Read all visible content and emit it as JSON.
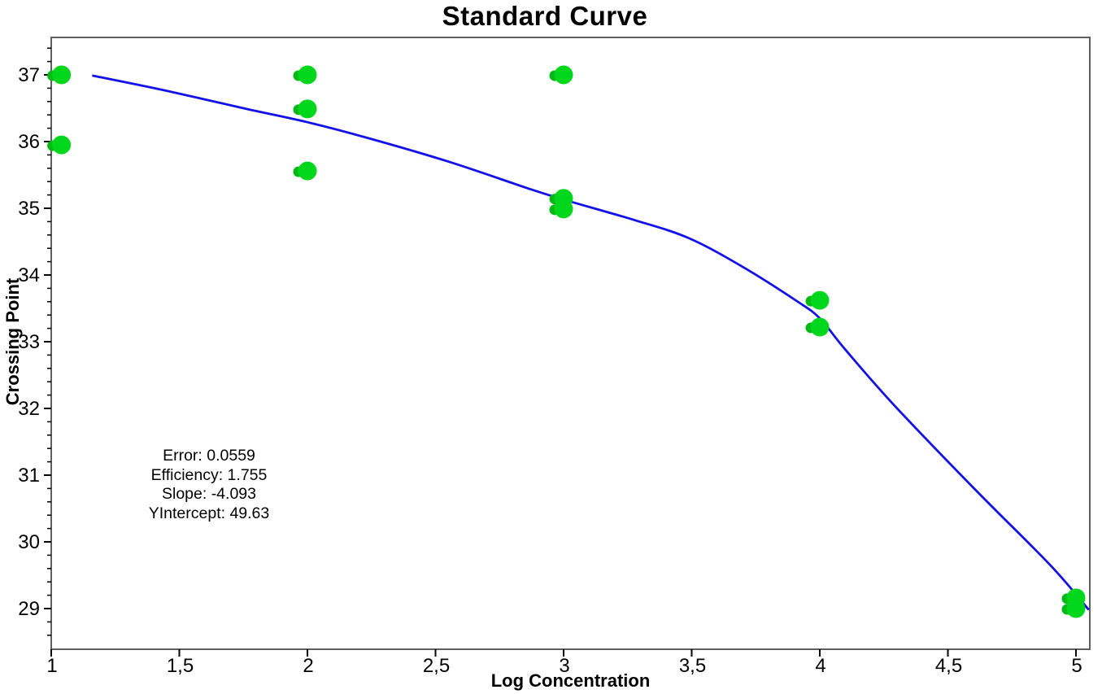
{
  "chart_data": {
    "type": "scatter",
    "title": "Standard Curve",
    "xlabel": "Log Concentration",
    "ylabel": "Crossing Point",
    "xlim": [
      1,
      5.05
    ],
    "ylim": [
      28.4,
      37.55
    ],
    "grid": false,
    "legend": "none",
    "x_ticks": {
      "values": [
        1,
        1.5,
        2,
        2.5,
        3,
        3.5,
        4,
        4.5,
        5
      ],
      "labels": [
        "1",
        "1,5",
        "2",
        "2,5",
        "3",
        "3,5",
        "4",
        "4,5",
        "5"
      ]
    },
    "y_ticks": {
      "values": [
        29,
        30,
        31,
        32,
        33,
        34,
        35,
        36,
        37
      ],
      "labels": [
        "29",
        "30",
        "31",
        "32",
        "33",
        "34",
        "35",
        "36",
        "37"
      ]
    },
    "y_minor_tick_step": 0.2,
    "series": [
      {
        "name": "standards",
        "marker": "circle",
        "color": "#00d61c",
        "points": [
          [
            1.04,
            37.0
          ],
          [
            1.04,
            35.95
          ],
          [
            2.0,
            37.0
          ],
          [
            2.0,
            36.49
          ],
          [
            2.0,
            35.56
          ],
          [
            3.0,
            37.0
          ],
          [
            3.0,
            35.15
          ],
          [
            3.0,
            34.99
          ],
          [
            4.0,
            33.62
          ],
          [
            4.0,
            33.22
          ],
          [
            5.0,
            29.16
          ],
          [
            5.0,
            29.0
          ]
        ]
      }
    ],
    "fit_curve": {
      "name": "standard-curve-fit",
      "color": "#1212e8",
      "points": [
        [
          1.16,
          36.99
        ],
        [
          1.44,
          36.77
        ],
        [
          1.75,
          36.5
        ],
        [
          2.0,
          36.29
        ],
        [
          2.23,
          36.06
        ],
        [
          2.55,
          35.7
        ],
        [
          2.86,
          35.3
        ],
        [
          3.0,
          35.13
        ],
        [
          3.28,
          34.82
        ],
        [
          3.49,
          34.55
        ],
        [
          3.7,
          34.12
        ],
        [
          3.91,
          33.61
        ],
        [
          4.0,
          33.35
        ],
        [
          4.1,
          32.88
        ],
        [
          4.29,
          32.05
        ],
        [
          4.61,
          30.77
        ],
        [
          4.9,
          29.65
        ],
        [
          5.05,
          28.98
        ]
      ]
    },
    "stats": [
      {
        "label": "Error",
        "value": "0.0559"
      },
      {
        "label": "Efficiency",
        "value": "1.755"
      },
      {
        "label": "Slope",
        "value": "-4.093"
      },
      {
        "label": "YIntercept",
        "value": "49.63"
      }
    ],
    "colors": {
      "point_fill": "#00d61c",
      "point_tail": "#00b816",
      "curve": "#1212e8",
      "plot_border": "#5f5f5f",
      "tick": "#000000",
      "text": "#000000",
      "background": "#ffffff"
    }
  }
}
